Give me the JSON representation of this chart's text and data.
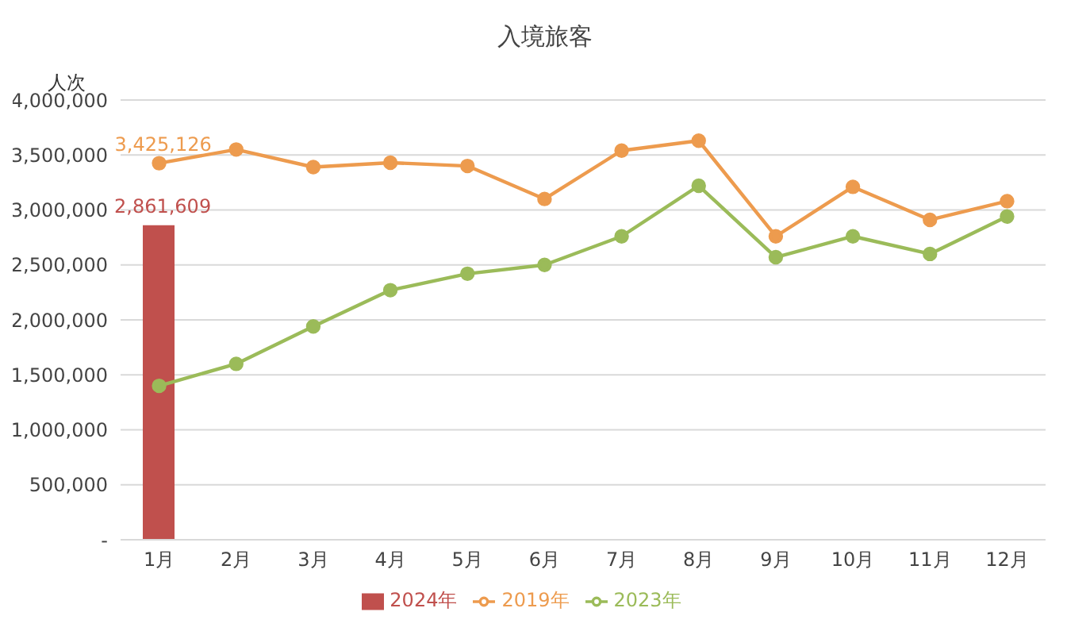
{
  "chart_data": {
    "type": "bar",
    "title": "入境旅客",
    "ylabel": "人次",
    "categories": [
      "1月",
      "2月",
      "3月",
      "4月",
      "5月",
      "6月",
      "7月",
      "8月",
      "9月",
      "10月",
      "11月",
      "12月"
    ],
    "series": [
      {
        "name": "2024年",
        "color": "#c0504d",
        "values": [
          2861609,
          null,
          null,
          null,
          null,
          null,
          null,
          null,
          null,
          null,
          null,
          null
        ],
        "value_labels": [
          "2,861,609",
          null,
          null,
          null,
          null,
          null,
          null,
          null,
          null,
          null,
          null,
          null
        ]
      },
      {
        "name": "2019年",
        "type": "line",
        "color": "#ed9b4e",
        "values": [
          3425126,
          3550000,
          3390000,
          3430000,
          3400000,
          3100000,
          3540000,
          3630000,
          2760000,
          3210000,
          2910000,
          3080000
        ],
        "value_labels": [
          "3,425,126",
          null,
          null,
          null,
          null,
          null,
          null,
          null,
          null,
          null,
          null,
          null
        ]
      },
      {
        "name": "2023年",
        "type": "line",
        "color": "#9bbb59",
        "values": [
          1400000,
          1600000,
          1940000,
          2270000,
          2420000,
          2500000,
          2760000,
          3220000,
          2570000,
          2760000,
          2600000,
          2940000
        ]
      }
    ],
    "ylim": [
      0,
      4000000
    ],
    "yticks": [
      {
        "value": 0,
        "label": "-"
      },
      {
        "value": 500000,
        "label": "500,000"
      },
      {
        "value": 1000000,
        "label": "1,000,000"
      },
      {
        "value": 1500000,
        "label": "1,500,000"
      },
      {
        "value": 2000000,
        "label": "2,000,000"
      },
      {
        "value": 2500000,
        "label": "2,500,000"
      },
      {
        "value": 3000000,
        "label": "3,000,000"
      },
      {
        "value": 3500000,
        "label": "3,500,000"
      },
      {
        "value": 4000000,
        "label": "4,000,000"
      }
    ],
    "grid": "y",
    "legend": "bottom",
    "marker": "circle"
  }
}
